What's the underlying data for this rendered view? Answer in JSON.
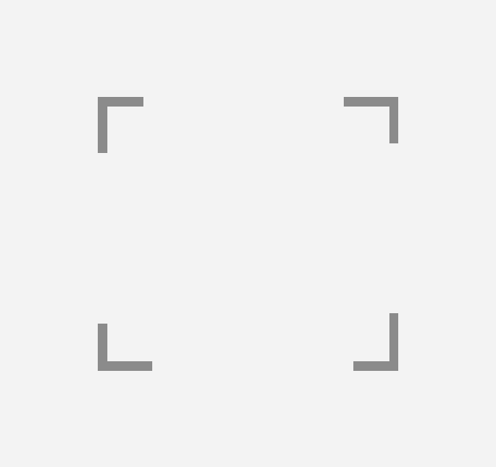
{
  "viewfinder": {
    "background_color": "#f3f3f3",
    "bracket_color": "#8b8b8b",
    "corners": [
      {
        "icon": "top-left-corner-icon"
      },
      {
        "icon": "top-right-corner-icon"
      },
      {
        "icon": "bottom-left-corner-icon"
      },
      {
        "icon": "bottom-right-corner-icon"
      }
    ]
  }
}
